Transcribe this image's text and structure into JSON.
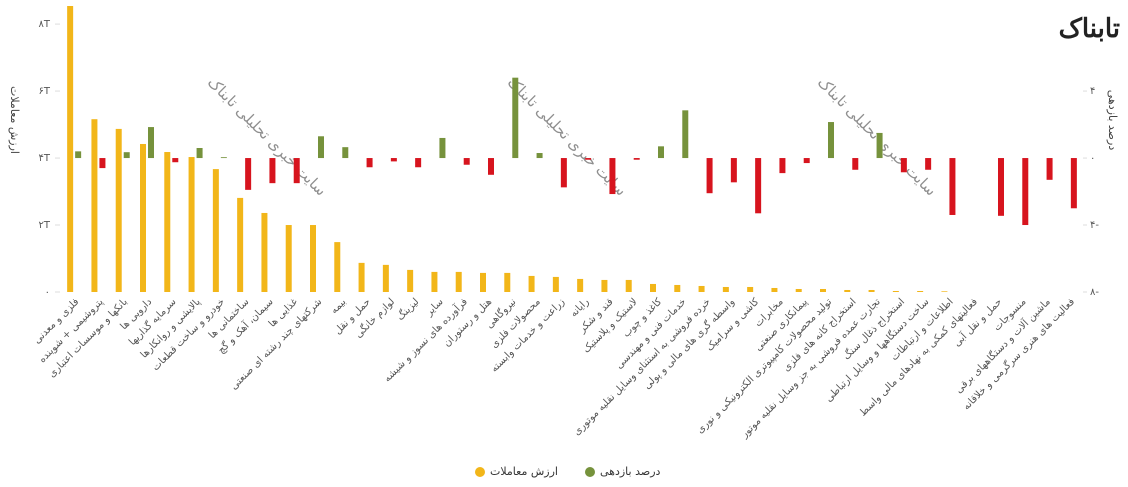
{
  "logo": "تابناک",
  "watermark": "سایت خبری تحلیلی تابناک",
  "chart_data": {
    "type": "bar",
    "y_label": "ارزش معاملات",
    "y2_label": "درصد بازدهی",
    "categories": [
      "فلزی و معدنی",
      "پتروشیمی + شوینده",
      "بانکها و موسسات اعتباری",
      "دارویی ها",
      "سرمایه گذاریها",
      "پالایشی و روانکارها",
      "خودرو و ساخت قطعات",
      "ساختمانی ها",
      "سیمان، آهک و گچ",
      "غذایی ها",
      "شرکتهای چند رشته ای صنعتی",
      "بیمه",
      "حمل و نقل",
      "لوازم خانگی",
      "لیزینگ",
      "سایر",
      "فرآورده های نسوز و شیشه",
      "هتل و رستوران",
      "نیروگاهی",
      "محصولات فلزی",
      "زراعت و خدمات وابسته",
      "رایانه",
      "قند و شکر",
      "لاستیک و پلاستیک",
      "کاغذ و چوب",
      "خدمات فنی و مهندسی",
      "خرده فروشی به استثنای وسایل نقلیه موتوری",
      "واسطه گری های مالی و پولی",
      "کاشی و سرامیک",
      "مخابرات",
      "پیمانکاری صنعتی",
      "تولید محصولات کامپیوتری الکترونیکی و نوری",
      "استخراج کانه های فلزی",
      "تجارت عمده فروشی به جز وسایل نقلیه موتور",
      "استخراج ذغال سنگ",
      "ساخت دستگاهها و وسایل ارتباطی",
      "اطلاعات و ارتباطات",
      "فعالیتهای کمکی به نهادهای مالی واسط",
      "حمل و نقل آبی",
      "منسوجات",
      "ماشین آلات و دستگاههای برقی",
      "فعالیت های هنری سرگرمی و خلاقانه"
    ],
    "series": [
      {
        "name": "ارزش معاملات",
        "color": "#f2b619",
        "axis": "y",
        "values": [
          8.54,
          5.16,
          4.87,
          4.42,
          4.18,
          4.03,
          3.67,
          2.81,
          2.36,
          2.0,
          2.0,
          1.49,
          0.87,
          0.81,
          0.66,
          0.6,
          0.6,
          0.57,
          0.57,
          0.48,
          0.45,
          0.39,
          0.36,
          0.36,
          0.24,
          0.21,
          0.18,
          0.15,
          0.15,
          0.12,
          0.09,
          0.09,
          0.06,
          0.06,
          0.03,
          0.03,
          0.02,
          0,
          0,
          0,
          0,
          0
        ]
      },
      {
        "name": "درصد بازدهی",
        "color": "#76923c",
        "negative_color": "#d7141e",
        "axis": "y2",
        "values": [
          0.4,
          -0.6,
          0.35,
          1.85,
          -0.25,
          0.6,
          0.05,
          -1.9,
          -1.5,
          -1.5,
          1.3,
          0.65,
          -0.55,
          -0.2,
          -0.55,
          1.2,
          -0.4,
          -1.0,
          4.8,
          0.3,
          -1.75,
          -0.1,
          -2.15,
          -0.1,
          0.7,
          2.85,
          -2.1,
          -1.45,
          -3.3,
          -0.9,
          -0.3,
          2.15,
          -0.7,
          1.5,
          -0.85,
          -0.7,
          -3.4,
          0,
          -3.45,
          -4.0,
          -1.3,
          -3.0
        ]
      }
    ],
    "ylim": [
      0,
      8.6
    ],
    "yticks": [
      {
        "value": 0,
        "label": "۰"
      },
      {
        "value": 2,
        "label": "۲T"
      },
      {
        "value": 4,
        "label": "۴T"
      },
      {
        "value": 6,
        "label": "۶T"
      },
      {
        "value": 8,
        "label": "۸T"
      }
    ],
    "y2lim": [
      -8,
      9.2
    ],
    "y2ticks": [
      {
        "value": -8,
        "label": "۸-"
      },
      {
        "value": -4,
        "label": "۴-"
      },
      {
        "value": 0,
        "label": "۰"
      },
      {
        "value": 4,
        "label": "۴"
      }
    ],
    "legend": "bottom"
  }
}
